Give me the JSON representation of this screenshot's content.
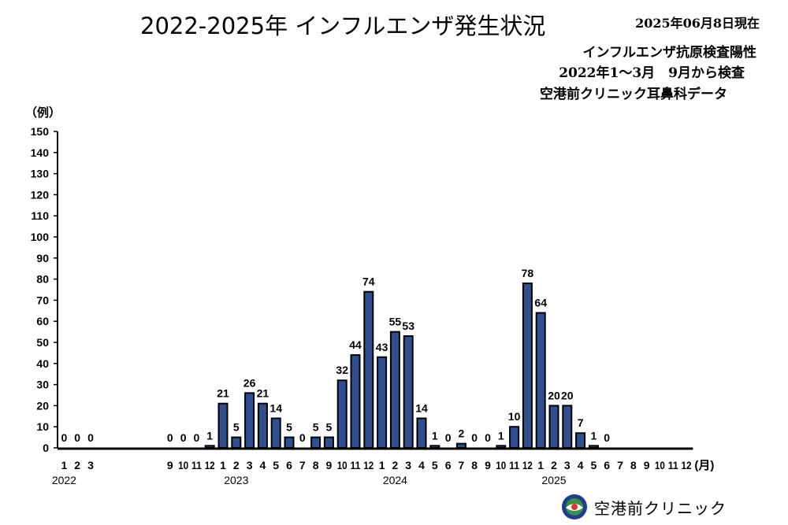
{
  "header": {
    "title": "2022-2025年 インフルエンザ発生状況",
    "as_of": "2025年06月8日現在",
    "subtitle_1": "インフルエンザ抗原検査陽性",
    "subtitle_2": "2022年1～3月　9月から検査",
    "subtitle_3": "空港前クリニック耳鼻科データ"
  },
  "footer": {
    "clinic_name": "空港前クリニック",
    "logo_icon": "clinic-logo-icon"
  },
  "colors": {
    "bar_fill": "#2f4f8f",
    "bar_stroke": "#000000",
    "background": "#ffffff"
  },
  "chart_data": {
    "type": "bar",
    "ylabel": "（例）",
    "xunit": "(月)",
    "ylim": [
      0,
      150
    ],
    "ytick_step": 10,
    "grid": false,
    "categories": [
      "1",
      "2",
      "3",
      "4",
      "5",
      "6",
      "7",
      "8",
      "9",
      "10",
      "11",
      "12",
      "1",
      "2",
      "3",
      "4",
      "5",
      "6",
      "7",
      "8",
      "9",
      "10",
      "11",
      "12",
      "1",
      "2",
      "3",
      "4",
      "5",
      "6",
      "7",
      "8",
      "9",
      "10",
      "11",
      "12",
      "1",
      "2",
      "3",
      "4",
      "5",
      "6",
      "7",
      "8",
      "9",
      "10",
      "11",
      "12"
    ],
    "year_labels": [
      {
        "year": "2022",
        "index": 0
      },
      {
        "year": "2023",
        "index": 13
      },
      {
        "year": "2024",
        "index": 25
      },
      {
        "year": "2025",
        "index": 37
      }
    ],
    "hidden_tick_indices": [
      3,
      4,
      5,
      6,
      7
    ],
    "values": [
      0,
      0,
      0,
      null,
      null,
      null,
      null,
      null,
      0,
      0,
      0,
      1,
      21,
      5,
      26,
      21,
      14,
      5,
      0,
      5,
      5,
      32,
      44,
      74,
      43,
      55,
      53,
      14,
      1,
      0,
      2,
      0,
      0,
      1,
      10,
      78,
      64,
      20,
      20,
      7,
      1,
      0,
      null,
      null,
      null,
      null,
      null,
      null
    ]
  }
}
